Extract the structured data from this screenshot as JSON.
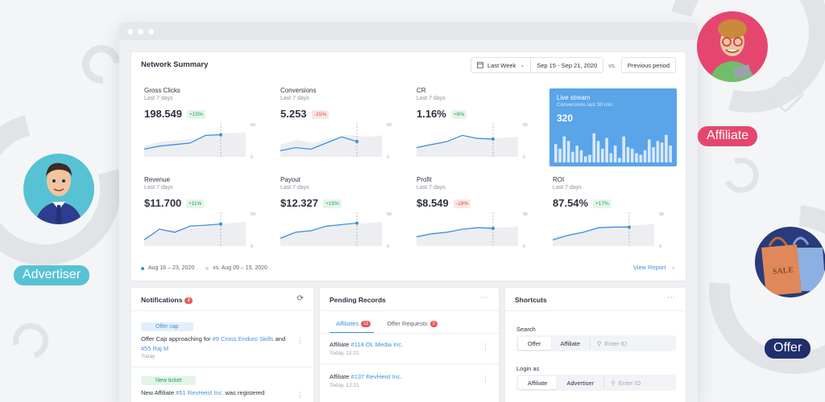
{
  "summary": {
    "title": "Network Summary",
    "range_select": "Last Week",
    "date_range": "Sep 15 - Sep 21, 2020",
    "vs": "vs.",
    "compare": "Previous period",
    "legend_current": "Aug 16 – 23, 2020",
    "legend_previous": "vs. Aug 09 – 15, 2020",
    "view_report": "View Report",
    "axis_top": "5K",
    "axis_bottom": "0"
  },
  "metrics": [
    {
      "label": "Gross Clicks",
      "sub": "Last 7 days",
      "value": "198.549",
      "change": "+15%",
      "dir": "up",
      "line": [
        0.25,
        0.35,
        0.4,
        0.45,
        0.7,
        0.72
      ],
      "area": [
        0.35,
        0.5,
        0.55,
        0.6,
        0.75,
        0.78,
        0.8
      ]
    },
    {
      "label": "Conversions",
      "sub": "Last 7 days",
      "value": "5.253",
      "change": "-15%",
      "dir": "down",
      "line": [
        0.2,
        0.3,
        0.25,
        0.45,
        0.65,
        0.5
      ],
      "area": [
        0.4,
        0.55,
        0.45,
        0.6,
        0.72,
        0.65,
        0.7
      ]
    },
    {
      "label": "CR",
      "sub": "Last 7 days",
      "value": "1.16%",
      "change": "+8%",
      "dir": "up",
      "line": [
        0.3,
        0.4,
        0.5,
        0.7,
        0.6,
        0.58
      ],
      "area": [
        0.35,
        0.45,
        0.5,
        0.65,
        0.6,
        0.62,
        0.65
      ]
    },
    {
      "label": "Revenue",
      "sub": "Last 7 days",
      "value": "$11.700",
      "change": "+11%",
      "dir": "up",
      "line": [
        0.2,
        0.55,
        0.45,
        0.65,
        0.68,
        0.72
      ],
      "area": [
        0.3,
        0.5,
        0.55,
        0.6,
        0.7,
        0.75,
        0.8
      ]
    },
    {
      "label": "Payout",
      "sub": "Last 7 days",
      "value": "$12.327",
      "change": "+15%",
      "dir": "up",
      "line": [
        0.25,
        0.45,
        0.5,
        0.65,
        0.7,
        0.75
      ],
      "area": [
        0.35,
        0.5,
        0.55,
        0.65,
        0.7,
        0.75,
        0.78
      ]
    },
    {
      "label": "Profit",
      "sub": "Last 7 days",
      "value": "$8.549",
      "change": "-18%",
      "dir": "down",
      "line": [
        0.3,
        0.4,
        0.45,
        0.55,
        0.6,
        0.58
      ],
      "area": [
        0.35,
        0.45,
        0.5,
        0.55,
        0.62,
        0.6,
        0.65
      ]
    },
    {
      "label": "ROI",
      "sub": "Last 7 days",
      "value": "87.54%",
      "change": "+17%",
      "dir": "up",
      "line": [
        0.2,
        0.35,
        0.45,
        0.6,
        0.62,
        0.62
      ],
      "area": [
        0.3,
        0.4,
        0.5,
        0.6,
        0.65,
        0.68,
        0.72
      ]
    }
  ],
  "live": {
    "title": "Live stream",
    "sub": "Conversions last 30 min",
    "value": "320",
    "bars": [
      0.6,
      0.45,
      0.85,
      0.7,
      0.35,
      0.55,
      0.4,
      0.2,
      0.25,
      0.95,
      0.7,
      0.45,
      0.8,
      0.3,
      0.55,
      0.15,
      0.85,
      0.5,
      0.45,
      0.3,
      0.25,
      0.4,
      0.75,
      0.5,
      0.7,
      0.65,
      0.9,
      0.55
    ]
  },
  "notifications": {
    "title": "Notifications",
    "count": "3",
    "items": [
      {
        "tag": "Offer cap",
        "text": "Offer Cap approaching for ",
        "link1": "#9 Cross Enduro Skills",
        "mid": " and ",
        "link2": "#55 Raj M",
        "time": "Today"
      },
      {
        "tag": "New ticket",
        "text": "New Affiliate ",
        "link1": "#51 RevHeist Inc.",
        "mid": " was registered",
        "link2": "",
        "time": ""
      }
    ]
  },
  "pending": {
    "title": "Pending Records",
    "tab_affiliates": "Affiliates",
    "tab_affiliates_count": "12",
    "tab_offers": "Offer Requests",
    "tab_offers_count": "3",
    "records": [
      {
        "prefix": "Affiliate ",
        "link": "#114 OL Media Inc.",
        "time": "Today, 12:21"
      },
      {
        "prefix": "Affiliate ",
        "link": "#137 RevHeist Inc.",
        "time": "Today, 12:21"
      }
    ]
  },
  "shortcuts": {
    "title": "Shortcuts",
    "search_label": "Search",
    "search_opt1": "Offer",
    "search_opt2": "Affiliate",
    "search_placeholder": "Enter ID",
    "login_label": "Login as",
    "login_opt1": "Affiliate",
    "login_opt2": "Advertiser",
    "login_placeholder": "Enter ID"
  },
  "roles": {
    "advertiser": "Advertiser",
    "affiliate": "Affiliate",
    "offer": "Offer",
    "sale_text": "SALE"
  },
  "colors": {
    "accent": "#3f8fe0",
    "live_bg": "#5aa4e8",
    "advertiser_pill": "#57c2d4",
    "affiliate_pill": "#e5466f",
    "offer_pill": "#1f2f6b"
  }
}
